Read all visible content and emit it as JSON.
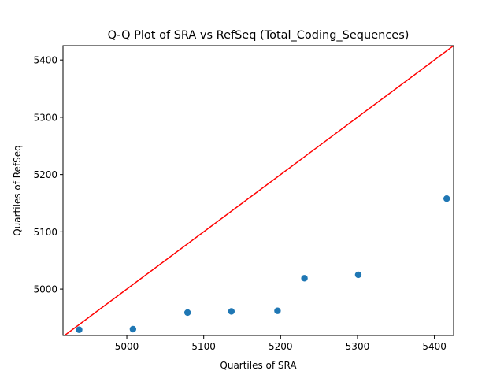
{
  "chart_data": {
    "type": "scatter",
    "title": "Q-Q Plot of SRA vs RefSeq (Total_Coding_Sequences)",
    "xlabel": "Quartiles of SRA",
    "ylabel": "Quartiles of RefSeq",
    "xlim": [
      4917,
      5425
    ],
    "ylim": [
      4919,
      5425
    ],
    "xticks": [
      5000,
      5100,
      5200,
      5300,
      5400
    ],
    "yticks": [
      5000,
      5100,
      5200,
      5300,
      5400
    ],
    "grid": false,
    "points": [
      {
        "x": 4938,
        "y": 4929
      },
      {
        "x": 5008,
        "y": 4930
      },
      {
        "x": 5079,
        "y": 4959
      },
      {
        "x": 5136,
        "y": 4961
      },
      {
        "x": 5196,
        "y": 4962
      },
      {
        "x": 5231,
        "y": 5019
      },
      {
        "x": 5301,
        "y": 5025
      },
      {
        "x": 5416,
        "y": 5158
      }
    ],
    "reference_line": {
      "slope": 1,
      "intercept": 0,
      "color": "#ff0000"
    },
    "marker_color": "#1f77b4"
  }
}
